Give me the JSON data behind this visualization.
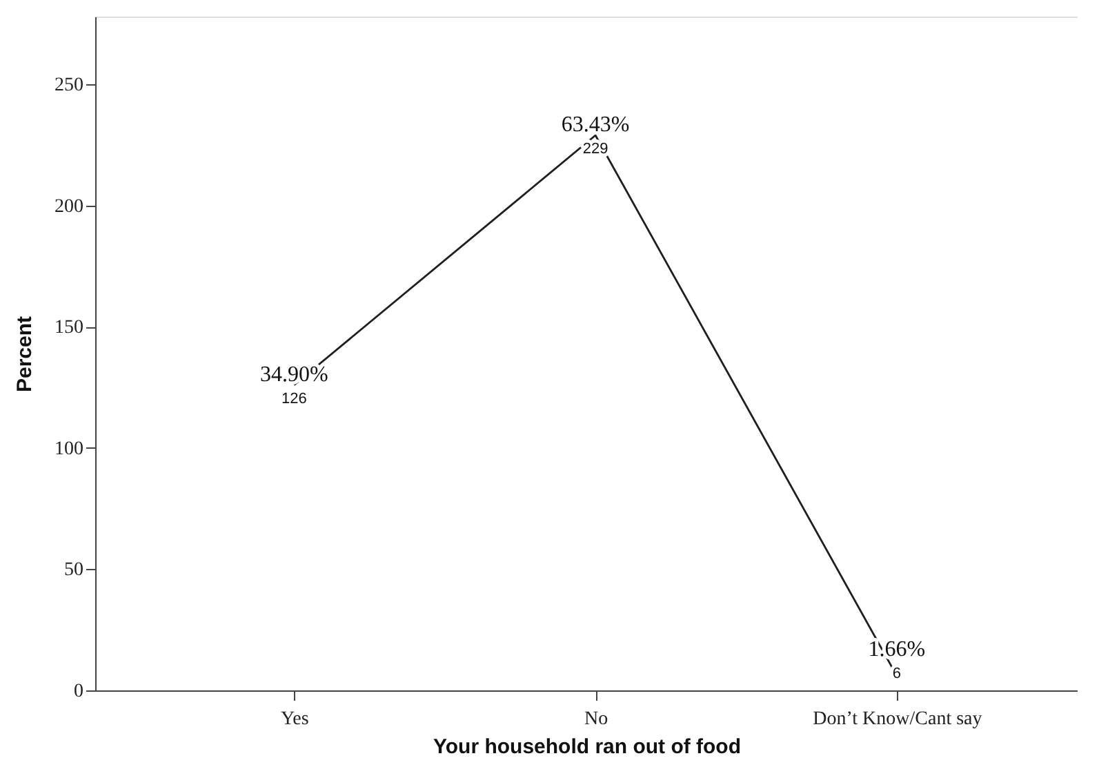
{
  "chart_data": {
    "type": "line",
    "xlabel": "Your household ran out of food",
    "ylabel": "Percent",
    "categories": [
      "Yes",
      "No",
      "Don’t Know/Cant say"
    ],
    "series": [
      {
        "color": "#1f1f1f",
        "values": [
          126,
          229,
          6
        ],
        "value_labels": [
          "34.90%\n126",
          "63.43%\n229",
          "1.66%\n6"
        ]
      }
    ],
    "ylim": [
      0,
      278
    ],
    "yticks": [
      0,
      50,
      100,
      150,
      200,
      250
    ],
    "grid": false,
    "marker": "none",
    "line_style": "solid"
  }
}
